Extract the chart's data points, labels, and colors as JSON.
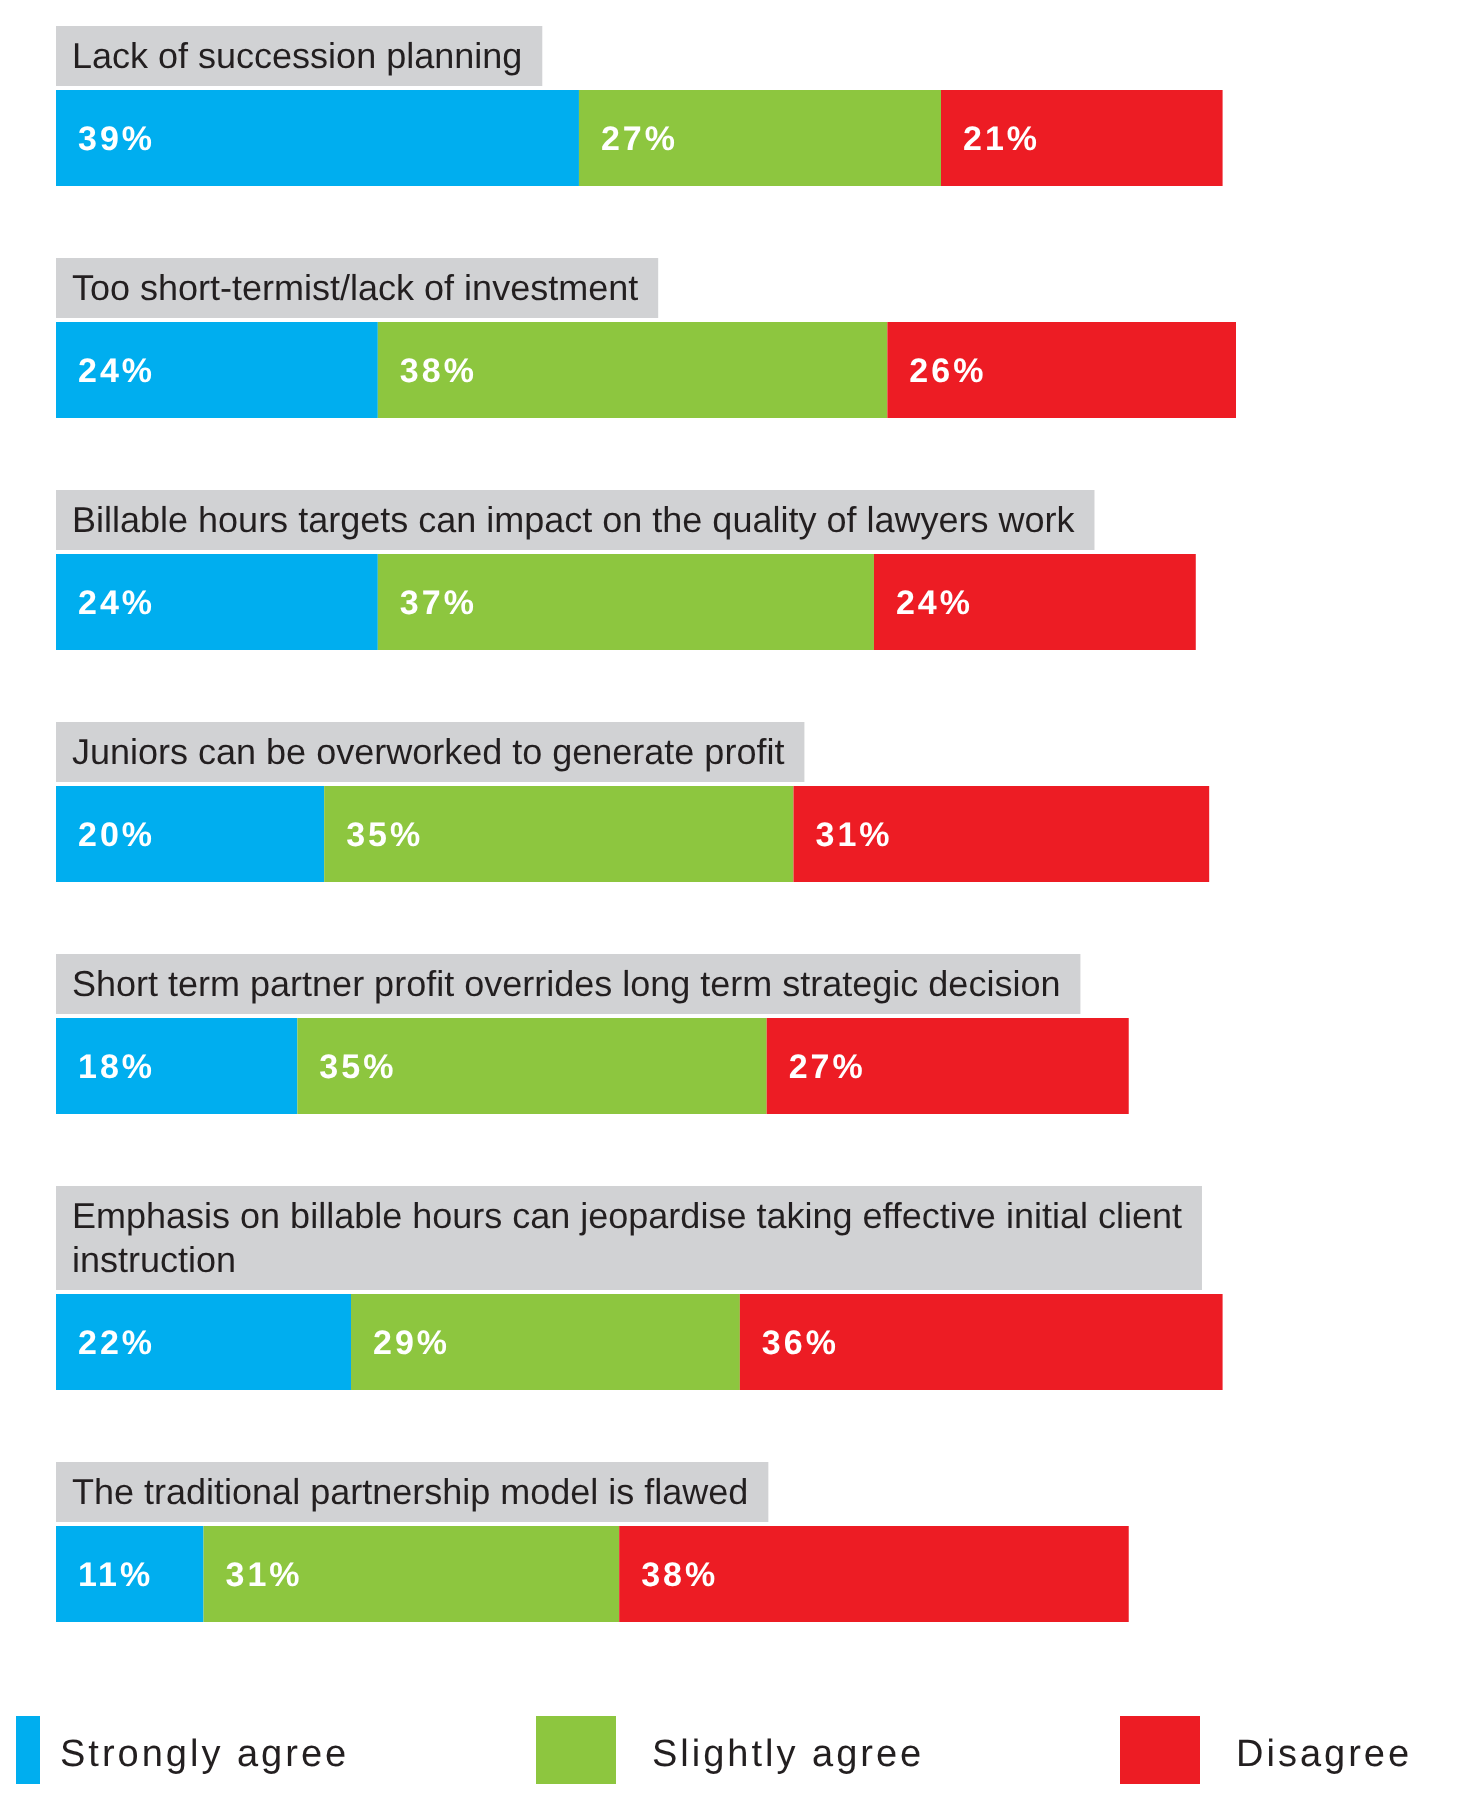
{
  "chart_data": {
    "type": "bar",
    "orientation": "horizontal",
    "stacked": true,
    "legend": "bottom",
    "categories": [
      "Lack of succession planning",
      "Too short-termist/lack of investment",
      "Billable hours targets can impact on the quality of lawyers work",
      "Juniors can be overworked to generate profit",
      "Short term partner profit overrides long term strategic decision",
      "Emphasis on billable hours can jeopardise taking effective initial client instruction",
      "The traditional partnership model is flawed"
    ],
    "series": [
      {
        "name": "Strongly agree",
        "color": "#00aeef",
        "values": [
          39,
          24,
          24,
          20,
          18,
          22,
          11
        ],
        "value_labels": [
          "39%",
          "24%",
          "24%",
          "20%",
          "18%",
          "22%",
          "11%"
        ]
      },
      {
        "name": "Slightly agree",
        "color": "#8dc63f",
        "values": [
          27,
          38,
          37,
          35,
          35,
          29,
          31
        ],
        "value_labels": [
          "27%",
          "38%",
          "37%",
          "35%",
          "35%",
          "29%",
          "31%"
        ]
      },
      {
        "name": "Disagree",
        "color": "#ed1c24",
        "values": [
          21,
          26,
          24,
          31,
          27,
          36,
          38
        ],
        "value_labels": [
          "21%",
          "26%",
          "24%",
          "31%",
          "27%",
          "36%",
          "38%"
        ]
      }
    ]
  }
}
